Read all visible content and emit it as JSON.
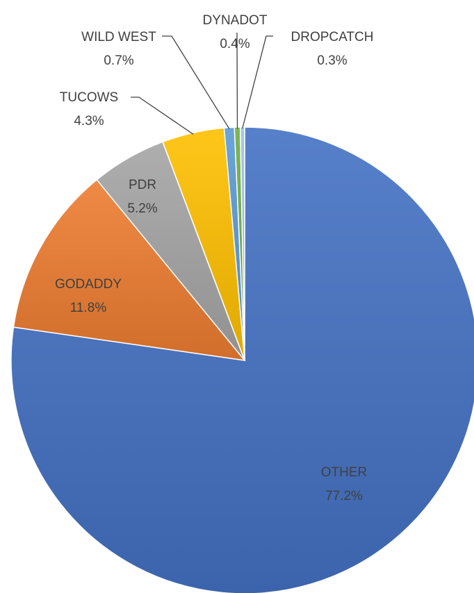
{
  "chart_data": {
    "type": "pie",
    "categories": [
      "OTHER",
      "GODADDY",
      "PDR",
      "TUCOWS",
      "WILD WEST",
      "DYNADOT",
      "DROPCATCH"
    ],
    "values": [
      77.2,
      11.8,
      5.2,
      4.3,
      0.7,
      0.4,
      0.3
    ],
    "value_labels": [
      "77.2%",
      "11.8%",
      "5.2%",
      "4.3%",
      "0.7%",
      "0.4%",
      "0.3%"
    ],
    "colors": [
      "#4472C4",
      "#ED7D31",
      "#A5A5A5",
      "#FFC000",
      "#5B9BD5",
      "#70AD47",
      "#9DC3E6"
    ],
    "start_angle": "12 o'clock, clockwise",
    "legend": "none",
    "data_labels": true
  }
}
